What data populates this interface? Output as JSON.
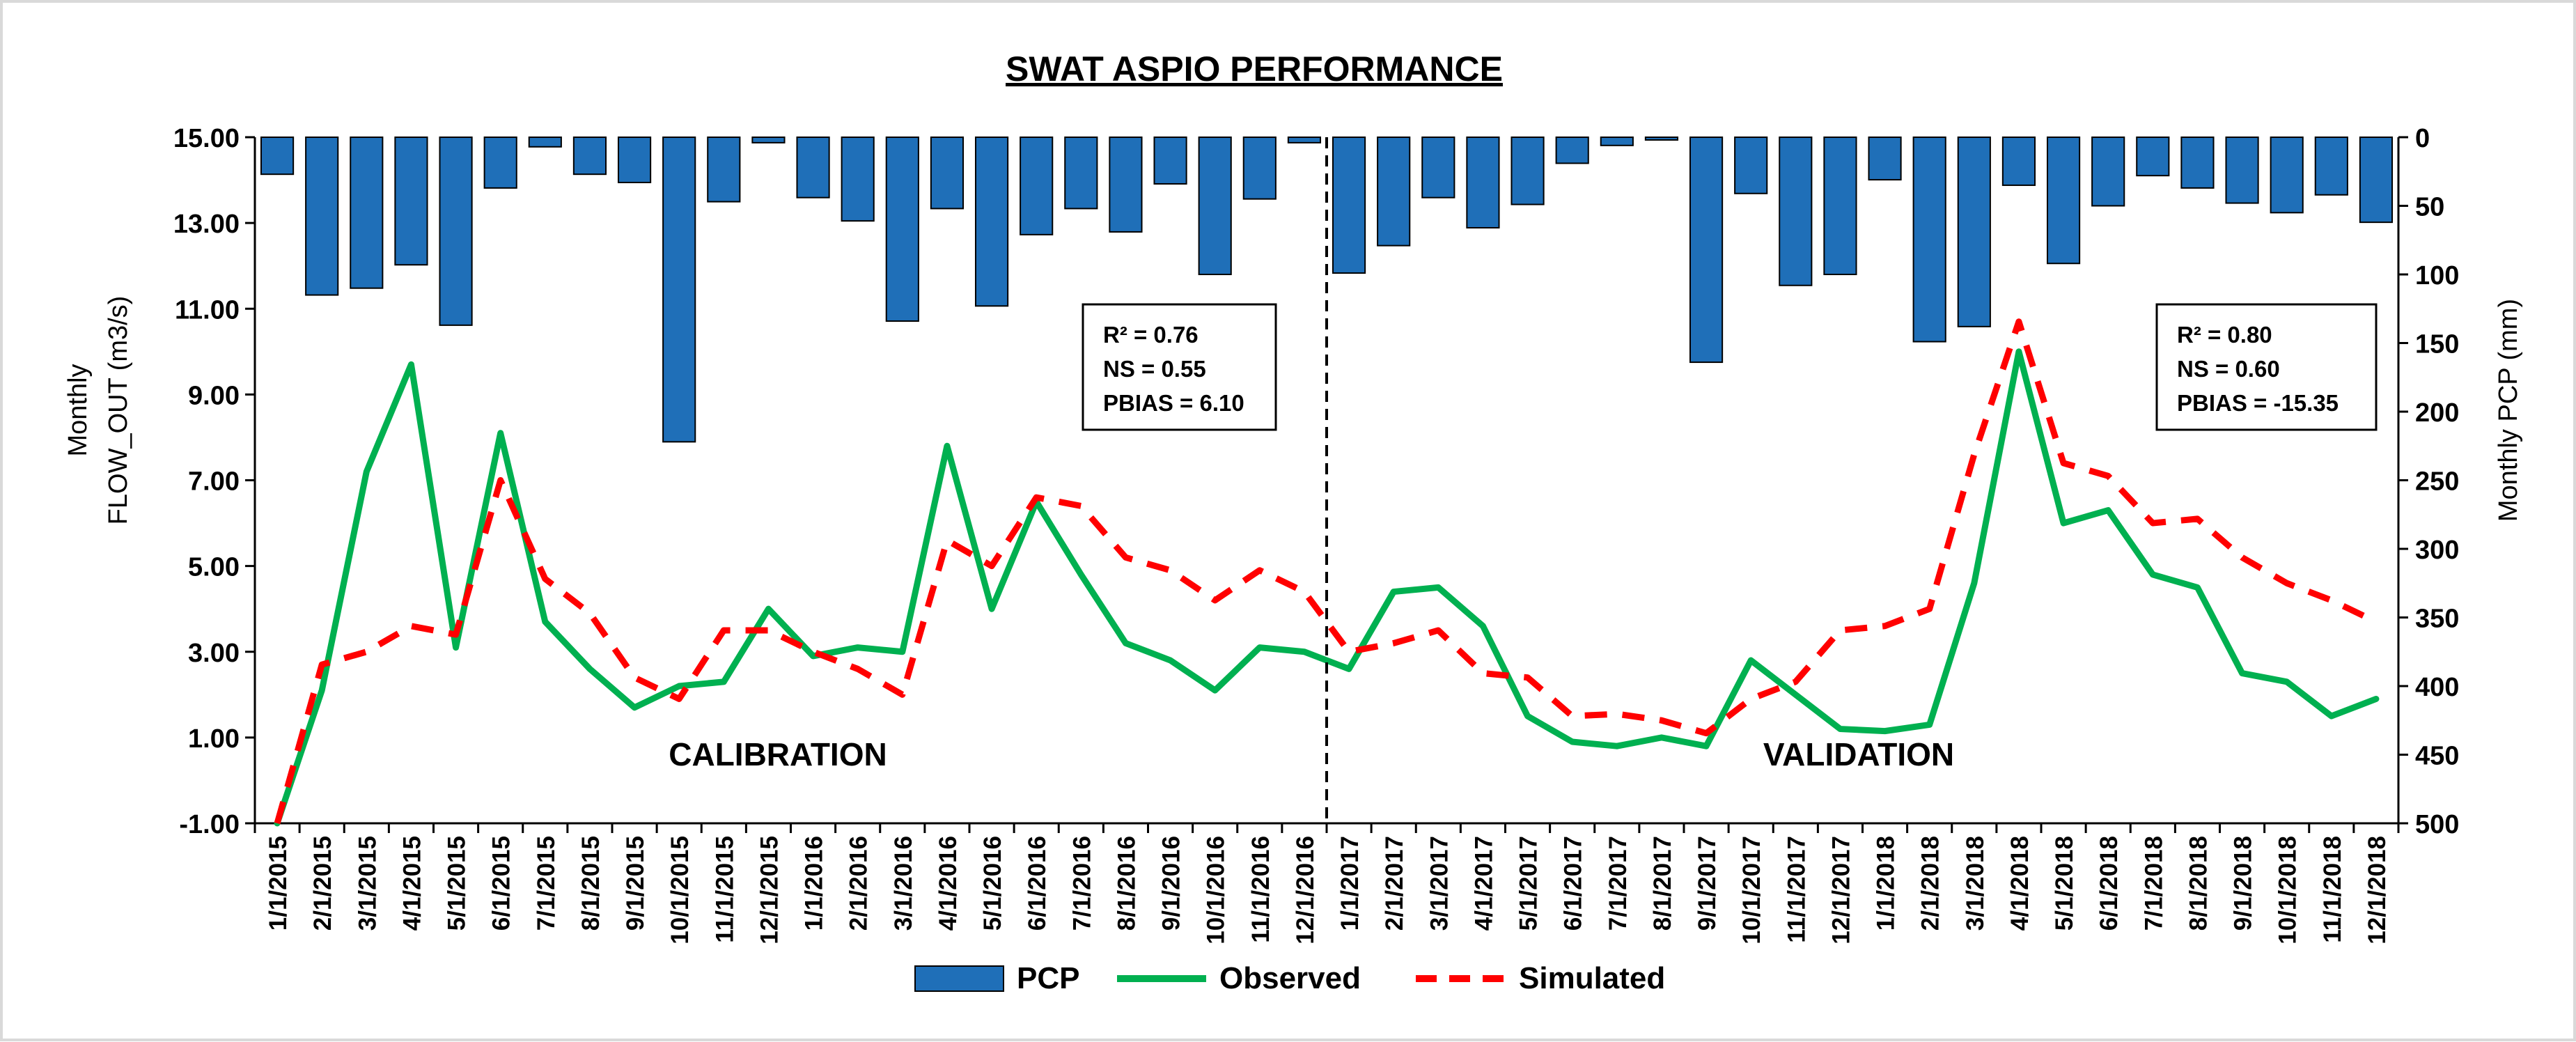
{
  "chart_data": {
    "type": "line",
    "title": "SWAT ASPIO PERFORMANCE",
    "ylabel_lines": [
      "Monthly",
      "FLOW_OUT  (m3/s)"
    ],
    "y2label": "Monthly PCP (mm)",
    "ylim": [
      -1,
      15
    ],
    "yticks": [
      "15.00",
      "13.00",
      "11.00",
      "9.00",
      "7.00",
      "5.00",
      "3.00",
      "1.00",
      "-1.00"
    ],
    "y2lim": [
      0,
      500
    ],
    "y2ticks": [
      "0",
      "50",
      "100",
      "150",
      "200",
      "250",
      "300",
      "350",
      "400",
      "450",
      "500"
    ],
    "categories": [
      "1/1/2015",
      "2/1/2015",
      "3/1/2015",
      "4/1/2015",
      "5/1/2015",
      "6/1/2015",
      "7/1/2015",
      "8/1/2015",
      "9/1/2015",
      "10/1/2015",
      "11/1/2015",
      "12/1/2015",
      "1/1/2016",
      "2/1/2016",
      "3/1/2016",
      "4/1/2016",
      "5/1/2016",
      "6/1/2016",
      "7/1/2016",
      "8/1/2016",
      "9/1/2016",
      "10/1/2016",
      "11/1/2016",
      "12/1/2016",
      "1/1/2017",
      "2/1/2017",
      "3/1/2017",
      "4/1/2017",
      "5/1/2017",
      "6/1/2017",
      "7/1/2017",
      "8/1/2017",
      "9/1/2017",
      "10/1/2017",
      "11/1/2017",
      "12/1/2017",
      "1/1/2018",
      "2/1/2018",
      "3/1/2018",
      "4/1/2018",
      "5/1/2018",
      "6/1/2018",
      "7/1/2018",
      "8/1/2018",
      "9/1/2018",
      "10/1/2018",
      "11/1/2018",
      "12/1/2018"
    ],
    "series": [
      {
        "name": "PCP",
        "type": "bar",
        "axis": "right",
        "color": "#1f6fb8",
        "values": [
          27,
          115,
          110,
          93,
          137,
          37,
          7,
          27,
          33,
          222,
          47,
          4,
          44,
          61,
          134,
          52,
          123,
          71,
          52,
          69,
          34,
          100,
          45,
          4,
          99,
          79,
          44,
          66,
          49,
          19,
          6,
          2,
          164,
          41,
          108,
          100,
          31,
          149,
          138,
          35,
          92,
          50,
          28,
          37,
          48,
          55,
          42,
          62
        ]
      },
      {
        "name": "Observed",
        "type": "line",
        "axis": "left",
        "color": "#00b050",
        "values": [
          -1.0,
          2.1,
          7.2,
          9.7,
          3.1,
          8.1,
          3.7,
          2.6,
          1.7,
          2.2,
          2.3,
          4.0,
          2.9,
          3.1,
          3.0,
          7.8,
          4.0,
          6.5,
          4.8,
          3.2,
          2.8,
          2.1,
          3.1,
          3.0,
          2.6,
          4.4,
          4.5,
          3.6,
          1.5,
          0.9,
          0.8,
          1.0,
          0.8,
          2.8,
          2.0,
          1.2,
          1.15,
          1.3,
          4.6,
          10.0,
          6.0,
          6.3,
          4.8,
          4.5,
          2.5,
          2.3,
          1.5,
          1.9
        ]
      },
      {
        "name": "Simulated",
        "type": "line",
        "axis": "left",
        "color": "#ff0000",
        "values": [
          -1.0,
          2.7,
          3.0,
          3.6,
          3.4,
          7.0,
          4.7,
          3.9,
          2.4,
          1.9,
          3.5,
          3.5,
          3.0,
          2.6,
          2.0,
          5.6,
          5.0,
          6.6,
          6.4,
          5.2,
          4.9,
          4.2,
          4.9,
          4.4,
          3.0,
          3.2,
          3.5,
          2.5,
          2.4,
          1.5,
          1.55,
          1.4,
          1.1,
          1.9,
          2.3,
          3.5,
          3.6,
          4.0,
          7.6,
          10.7,
          7.4,
          7.1,
          6.0,
          6.1,
          5.2,
          4.6,
          4.2,
          3.7
        ]
      }
    ],
    "split_after_index": 23,
    "period_labels": {
      "calibration": "CALIBRATION",
      "validation": "VALIDATION"
    },
    "stats": {
      "calibration": {
        "r2": "R² = 0.76",
        "ns": "NS = 0.55",
        "pbias": "PBIAS = 6.10"
      },
      "validation": {
        "r2": "R² = 0.80",
        "ns": "NS = 0.60",
        "pbias": "PBIAS = -15.35"
      }
    },
    "legend": {
      "placement": "bottom-center",
      "items": [
        "PCP",
        "Observed",
        "Simulated"
      ]
    },
    "grid": false
  }
}
